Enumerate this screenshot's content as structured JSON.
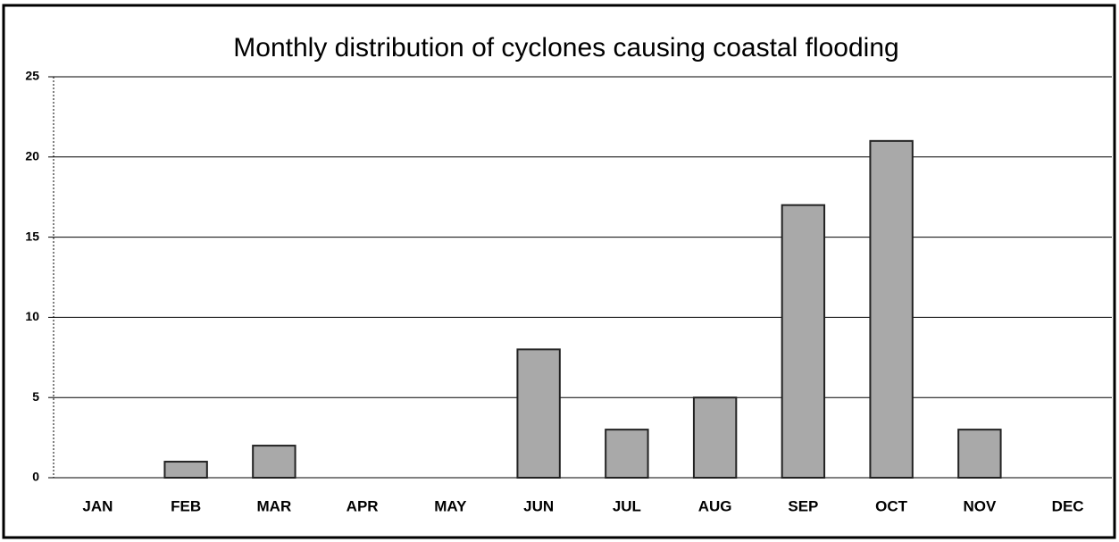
{
  "chart_data": {
    "type": "bar",
    "title": "Monthly distribution of cyclones causing coastal flooding",
    "categories": [
      "JAN",
      "FEB",
      "MAR",
      "APR",
      "MAY",
      "JUN",
      "JUL",
      "AUG",
      "SEP",
      "OCT",
      "NOV",
      "DEC"
    ],
    "values": [
      0,
      1,
      2,
      0,
      0,
      8,
      3,
      5,
      17,
      21,
      3,
      0
    ],
    "color": "#a9a9a9",
    "ylim": [
      0,
      25
    ],
    "yticks": [
      0,
      5,
      10,
      15,
      20,
      25
    ],
    "grid": true
  }
}
